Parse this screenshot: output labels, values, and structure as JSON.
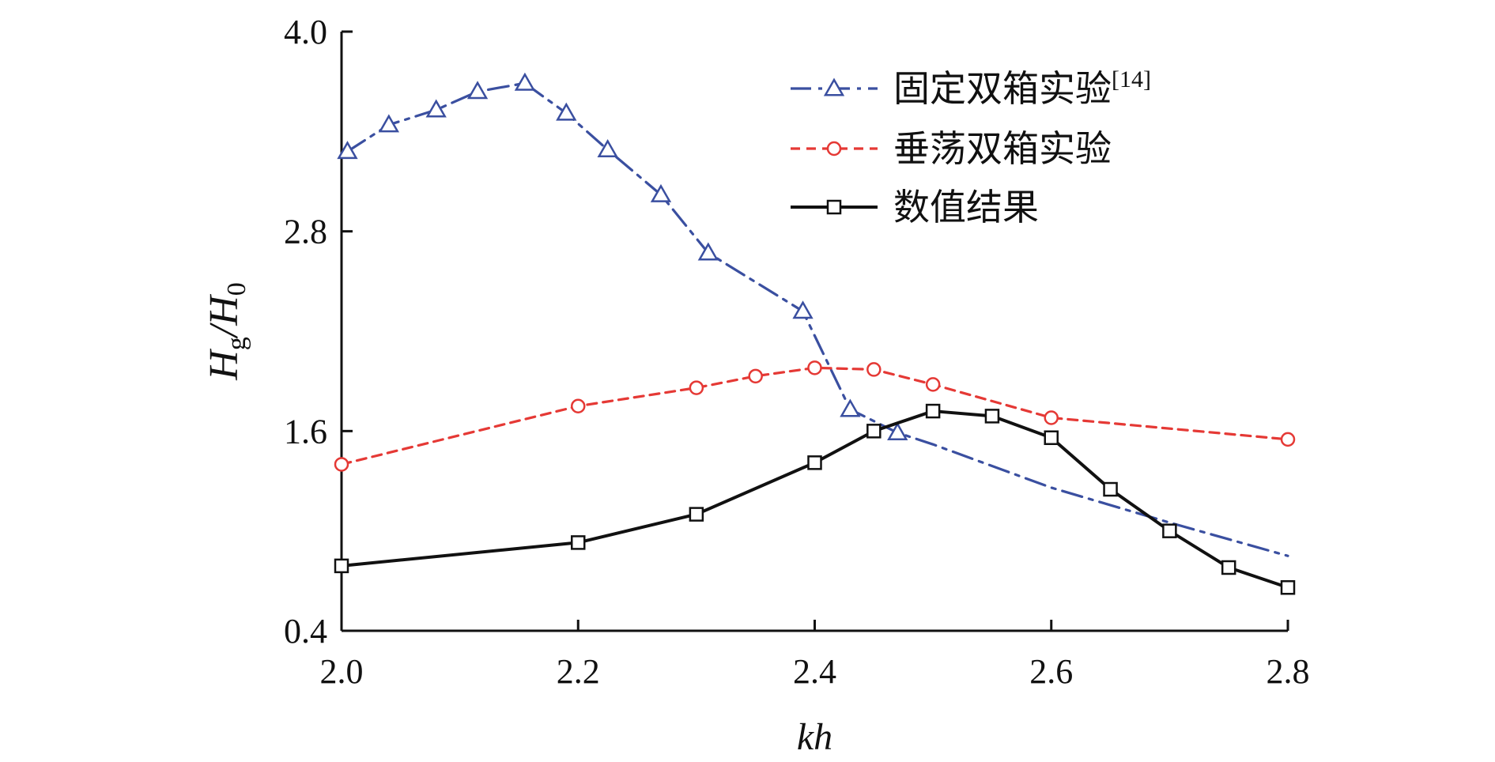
{
  "chart_data": {
    "type": "line",
    "xlabel": "kh",
    "ylabel": {
      "main": "H",
      "sub1": "g",
      "mid": "/H",
      "sub2": "0"
    },
    "xlim": [
      2.0,
      2.8
    ],
    "ylim": [
      0.4,
      4.0
    ],
    "xticks": [
      "2.0",
      "2.2",
      "2.4",
      "2.6",
      "2.8"
    ],
    "yticks": [
      "0.4",
      "1.6",
      "2.8",
      "4.0"
    ],
    "grid": false,
    "legend_position": "top-right",
    "series": [
      {
        "name": "固定双箱实验",
        "ref": "[14]",
        "color": "#3a4fa0",
        "style": "dash-dot",
        "marker": "triangle",
        "x": [
          2.005,
          2.04,
          2.08,
          2.115,
          2.155,
          2.19,
          2.225,
          2.27,
          2.31,
          2.39,
          2.43,
          2.47
        ],
        "y": [
          3.28,
          3.44,
          3.53,
          3.64,
          3.69,
          3.51,
          3.29,
          3.02,
          2.67,
          2.32,
          1.73,
          1.59
        ],
        "x_line": [
          2.005,
          2.04,
          2.08,
          2.115,
          2.155,
          2.19,
          2.225,
          2.27,
          2.31,
          2.39,
          2.43,
          2.47,
          2.5,
          2.6,
          2.7,
          2.8
        ],
        "y_line": [
          3.28,
          3.44,
          3.53,
          3.64,
          3.69,
          3.51,
          3.29,
          3.02,
          2.67,
          2.32,
          1.73,
          1.59,
          1.52,
          1.26,
          1.05,
          0.85
        ]
      },
      {
        "name": "垂荡双箱实验",
        "color": "#e53935",
        "style": "dashed",
        "marker": "circle",
        "x": [
          2.0,
          2.2,
          2.3,
          2.35,
          2.4,
          2.45,
          2.5,
          2.6,
          2.8
        ],
        "y": [
          1.4,
          1.75,
          1.86,
          1.93,
          1.98,
          1.97,
          1.88,
          1.68,
          1.55
        ]
      },
      {
        "name": "数值结果",
        "color": "#111111",
        "style": "solid",
        "marker": "square",
        "x": [
          2.0,
          2.2,
          2.3,
          2.4,
          2.45,
          2.5,
          2.55,
          2.6,
          2.65,
          2.7,
          2.75,
          2.8
        ],
        "y": [
          0.79,
          0.93,
          1.1,
          1.41,
          1.6,
          1.72,
          1.69,
          1.56,
          1.25,
          1.0,
          0.78,
          0.66
        ]
      }
    ]
  }
}
